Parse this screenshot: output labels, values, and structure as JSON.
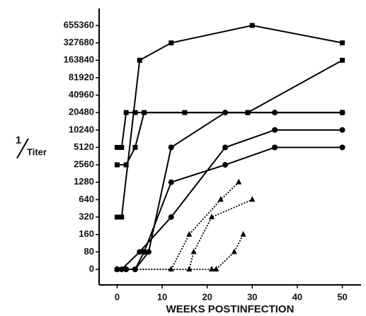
{
  "chart_data": {
    "type": "line",
    "xlabel": "WEEKS POSTINFECTION",
    "ylabel": {
      "numerator": "1",
      "denominator": "Titer"
    },
    "y_scale": "log2",
    "xlim": [
      -4,
      54
    ],
    "xticks": [
      0,
      10,
      20,
      30,
      40,
      50
    ],
    "ylim": [
      0,
      655360
    ],
    "yticks": [
      0,
      80,
      160,
      320,
      640,
      1280,
      2560,
      5120,
      10240,
      20480,
      40960,
      81920,
      163840,
      327680,
      655360
    ],
    "color": "#000000",
    "series": [
      {
        "marker": "square",
        "line": "solid",
        "x": [
          0,
          1,
          5,
          12,
          30,
          50
        ],
        "values": [
          320,
          320,
          163840,
          327680,
          655360,
          327680
        ]
      },
      {
        "marker": "square",
        "line": "solid",
        "x": [
          0,
          1,
          2,
          4,
          15,
          29,
          50
        ],
        "values": [
          5120,
          5120,
          20480,
          20480,
          20480,
          20480,
          20480
        ]
      },
      {
        "marker": "square",
        "line": "solid",
        "x": [
          0,
          2,
          4,
          6,
          29,
          50
        ],
        "values": [
          2560,
          2560,
          5120,
          20480,
          20480,
          163840
        ]
      },
      {
        "marker": "circle",
        "line": "solid",
        "x": [
          0,
          2,
          4,
          7,
          12,
          24,
          35,
          50
        ],
        "values": [
          0,
          0,
          0,
          80,
          5120,
          20480,
          20480,
          20480
        ]
      },
      {
        "marker": "circle",
        "line": "solid",
        "x": [
          0,
          2,
          4,
          6,
          12,
          24,
          35,
          50
        ],
        "values": [
          0,
          0,
          0,
          80,
          1280,
          2560,
          5120,
          5120
        ]
      },
      {
        "marker": "circle",
        "line": "solid",
        "x": [
          0,
          1,
          5,
          12,
          24,
          35,
          50
        ],
        "values": [
          0,
          0,
          80,
          320,
          5120,
          10240,
          10240
        ]
      },
      {
        "marker": "triangle",
        "line": "dotted",
        "x": [
          0,
          12,
          16,
          23,
          27
        ],
        "values": [
          0,
          0,
          160,
          640,
          1280
        ]
      },
      {
        "marker": "triangle",
        "line": "dotted",
        "x": [
          0,
          16,
          17,
          21,
          30
        ],
        "values": [
          0,
          0,
          80,
          320,
          640
        ]
      },
      {
        "marker": "triangle",
        "line": "dotted",
        "x": [
          0,
          21,
          22,
          26,
          28
        ],
        "values": [
          0,
          0,
          0,
          80,
          160
        ]
      }
    ]
  }
}
